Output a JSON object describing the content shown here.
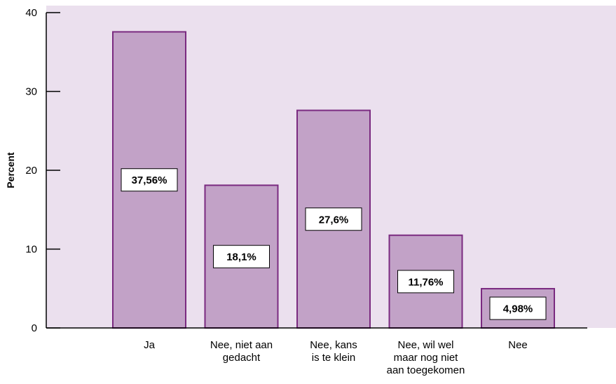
{
  "chart_data": {
    "type": "bar",
    "categories": [
      [
        "Ja"
      ],
      [
        "Nee, niet aan",
        "gedacht"
      ],
      [
        "Nee, kans",
        "is te klein"
      ],
      [
        "Nee, wil wel",
        "maar nog niet",
        "aan toegekomen"
      ],
      [
        "Nee"
      ]
    ],
    "values": [
      37.56,
      18.1,
      27.6,
      11.76,
      4.98
    ],
    "data_labels": [
      "37,56%",
      "18,1%",
      "27,6%",
      "11,76%",
      "4,98%"
    ],
    "ylabel": "Percent",
    "xlabel": "",
    "ylim": [
      0,
      40
    ],
    "yticks": [
      0,
      10,
      20,
      30,
      40
    ],
    "grid": false,
    "colors": {
      "plot_background": "#ebe0ee",
      "bar_fill": "#c2a2c7",
      "bar_stroke": "#7a2a80",
      "label_box": "#ffffff",
      "axis": "#000000"
    }
  }
}
